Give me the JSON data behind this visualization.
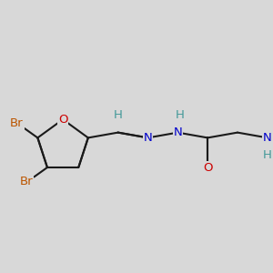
{
  "bg_color": "#d8d8d8",
  "bond_color": "#1a1a1a",
  "bond_width": 1.5,
  "dbo": 0.025,
  "atom_colors": {
    "O": "#cc0000",
    "N": "#0000cc",
    "Br": "#bb5500",
    "H": "#449999"
  },
  "font_size": 9.5
}
